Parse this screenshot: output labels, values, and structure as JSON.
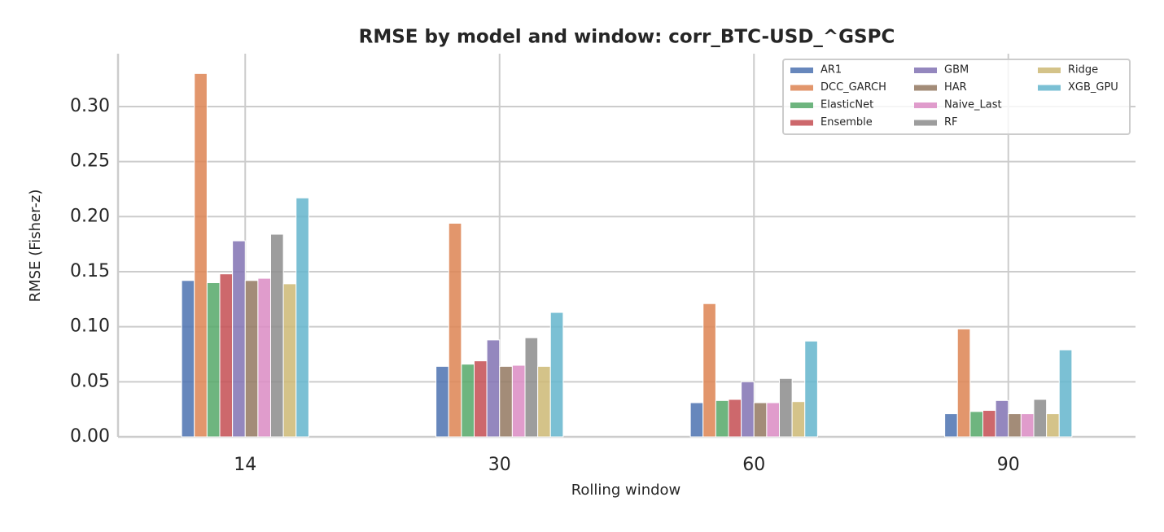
{
  "chart_data": {
    "type": "bar",
    "title": "RMSE by model and window: corr_BTC-USD_^GSPC",
    "x_label": "Rolling window",
    "y_label": "RMSE (Fisher-z)",
    "categories": [
      "14",
      "30",
      "60",
      "90"
    ],
    "series": [
      {
        "name": "AR1",
        "color": "#4c72b0",
        "values": [
          0.142,
          0.064,
          0.031,
          0.021
        ]
      },
      {
        "name": "DCC_GARCH",
        "color": "#dd8452",
        "values": [
          0.33,
          0.194,
          0.121,
          0.098
        ]
      },
      {
        "name": "ElasticNet",
        "color": "#55a868",
        "values": [
          0.14,
          0.066,
          0.033,
          0.023
        ]
      },
      {
        "name": "Ensemble",
        "color": "#c44e52",
        "values": [
          0.148,
          0.069,
          0.034,
          0.024
        ]
      },
      {
        "name": "GBM",
        "color": "#8172b3",
        "values": [
          0.178,
          0.088,
          0.05,
          0.033
        ]
      },
      {
        "name": "HAR",
        "color": "#937860",
        "values": [
          0.142,
          0.064,
          0.031,
          0.021
        ]
      },
      {
        "name": "Naive_Last",
        "color": "#da8bc3",
        "values": [
          0.144,
          0.065,
          0.031,
          0.021
        ]
      },
      {
        "name": "RF",
        "color": "#8c8c8c",
        "values": [
          0.184,
          0.09,
          0.053,
          0.034
        ]
      },
      {
        "name": "Ridge",
        "color": "#ccb974",
        "values": [
          0.139,
          0.064,
          0.032,
          0.021
        ]
      },
      {
        "name": "XGB_GPU",
        "color": "#64b5cd",
        "values": [
          0.217,
          0.113,
          0.087,
          0.079
        ]
      }
    ],
    "ylim": [
      0,
      0.348
    ],
    "yticks": [
      {
        "value": 0,
        "label": "0.00"
      },
      {
        "value": 0.05,
        "label": "0.05"
      },
      {
        "value": 0.1,
        "label": "0.10"
      },
      {
        "value": 0.15,
        "label": "0.15"
      },
      {
        "value": 0.2,
        "label": "0.20"
      },
      {
        "value": 0.25,
        "label": "0.25"
      },
      {
        "value": 0.3,
        "label": "0.30"
      }
    ],
    "grid": true,
    "legend_loc": "upper right",
    "legend_columns": 3
  }
}
